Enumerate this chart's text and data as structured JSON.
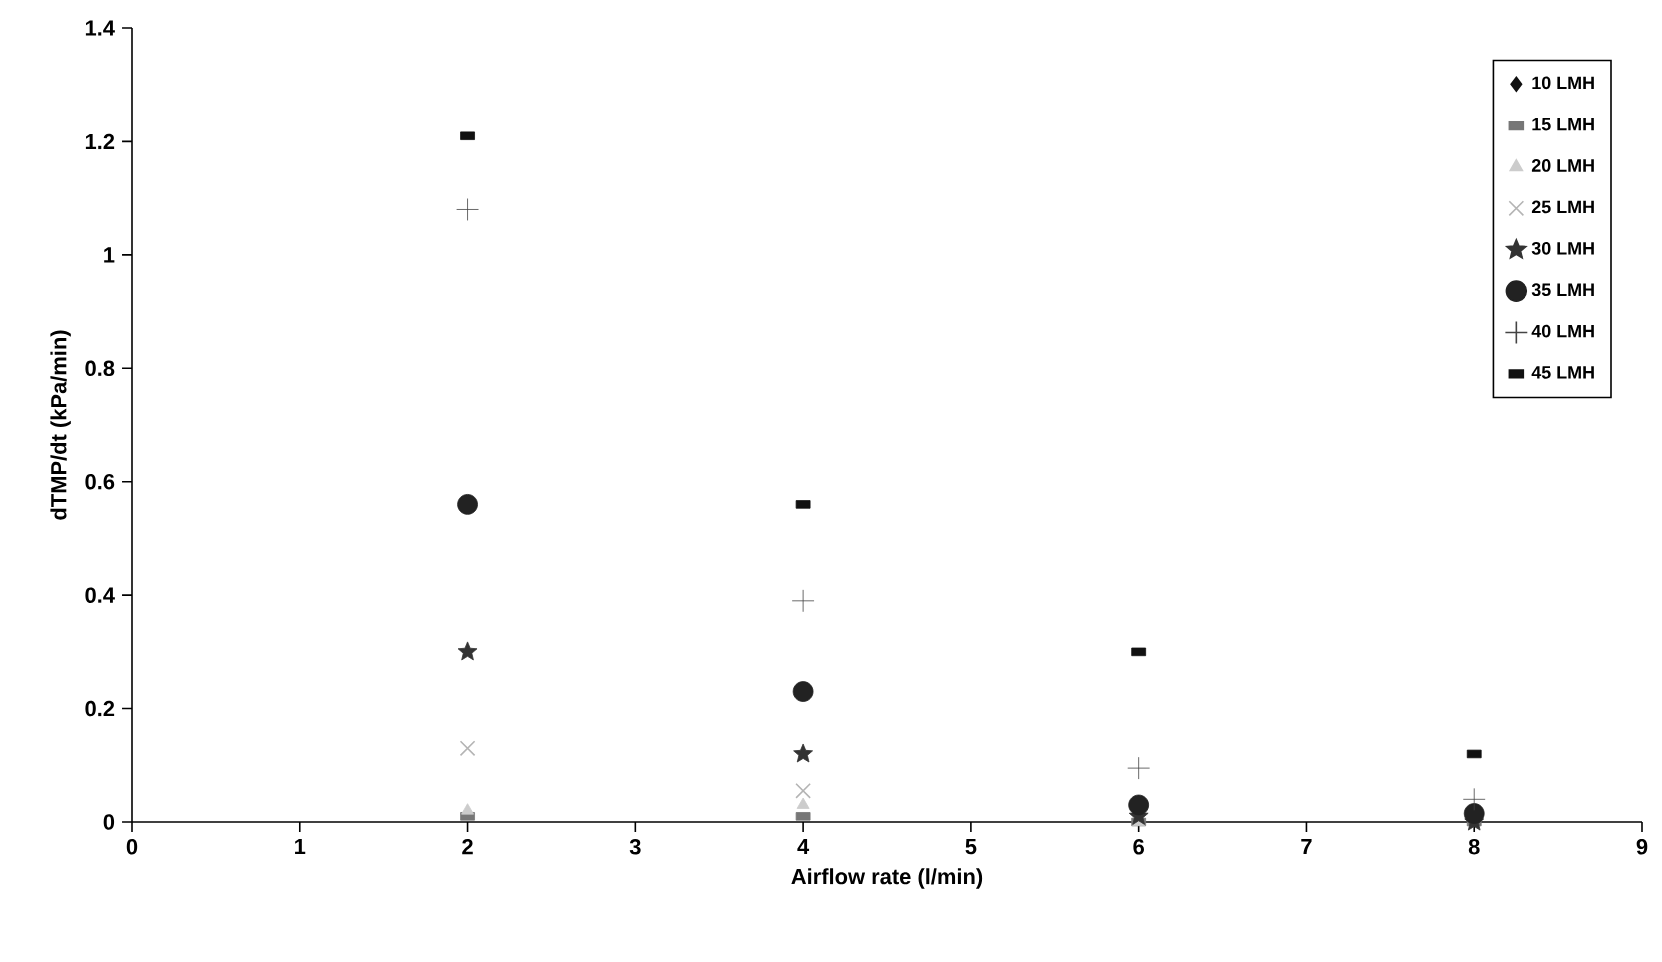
{
  "chart_data": {
    "type": "scatter",
    "xlabel": "Airflow rate (l/min)",
    "ylabel": "dTMP/dt (kPa/min)",
    "x": [
      2,
      4,
      6,
      8
    ],
    "xlim": [
      0,
      9
    ],
    "xticks": [
      0,
      1,
      2,
      3,
      4,
      5,
      6,
      7,
      8,
      9
    ],
    "ylim": [
      0,
      1.4
    ],
    "yticks": [
      0,
      0.2,
      0.4,
      0.6,
      0.8,
      1,
      1.2,
      1.4
    ],
    "grid": false,
    "legend": "top right",
    "series": [
      {
        "name": "10 LMH",
        "color": "#111111",
        "marker": "diamond",
        "values": [
          null,
          null,
          null,
          null
        ]
      },
      {
        "name": "15 LMH",
        "color": "#777777",
        "marker": "square",
        "values": [
          0.01,
          0.01,
          0.0,
          0.0
        ]
      },
      {
        "name": "20 LMH",
        "color": "#cccccc",
        "marker": "triangle",
        "values": [
          0.02,
          0.03,
          0.0,
          null
        ]
      },
      {
        "name": "25 LMH",
        "color": "#b4b4b4",
        "marker": "cross",
        "values": [
          0.13,
          0.055,
          null,
          null
        ]
      },
      {
        "name": "30 LMH",
        "color": "#333333",
        "marker": "star",
        "values": [
          0.3,
          0.12,
          0.01,
          0.0
        ]
      },
      {
        "name": "35 LMH",
        "color": "#222222",
        "marker": "circle",
        "values": [
          0.56,
          0.23,
          0.03,
          0.015
        ]
      },
      {
        "name": "40 LMH",
        "color": "#444444",
        "marker": "plus",
        "values": [
          1.08,
          0.39,
          0.095,
          0.04
        ]
      },
      {
        "name": "45 LMH",
        "color": "#111111",
        "marker": "square",
        "values": [
          1.21,
          0.56,
          0.3,
          0.12
        ]
      }
    ]
  }
}
